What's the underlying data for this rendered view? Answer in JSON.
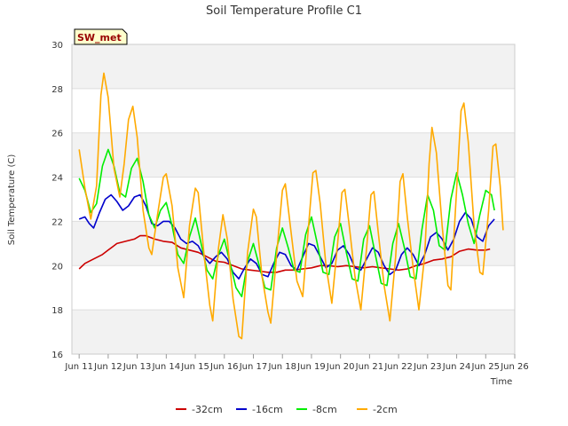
{
  "chart_data": {
    "type": "line",
    "title": "Soil Temperature Profile C1",
    "xlabel": "Time",
    "ylabel": "Soil Temperature (C)",
    "badge": "SW_met",
    "x_tick_labels": [
      "Jun 11",
      "Jun 12",
      "Jun 13",
      "Jun 14",
      "Jun 15",
      "Jun 16",
      "Jun 17",
      "Jun 18",
      "Jun 19",
      "Jun 20",
      "Jun 21",
      "Jun 22",
      "Jun 23",
      "Jun 24",
      "Jun 25",
      "Jun 26"
    ],
    "x_tick_values": [
      11,
      12,
      13,
      14,
      15,
      16,
      17,
      18,
      19,
      20,
      21,
      22,
      23,
      24,
      25,
      26
    ],
    "xlim": [
      10.75,
      26
    ],
    "ylim": [
      16,
      30
    ],
    "y_ticks": [
      16,
      18,
      20,
      22,
      24,
      26,
      28,
      30
    ],
    "grid_bands": true,
    "legend_position": "bottom",
    "series": [
      {
        "name": "-32cm",
        "color": "#cc0000",
        "points": [
          [
            11.0,
            19.85
          ],
          [
            11.2,
            20.1
          ],
          [
            11.5,
            20.3
          ],
          [
            11.8,
            20.5
          ],
          [
            12.0,
            20.7
          ],
          [
            12.3,
            21.0
          ],
          [
            12.6,
            21.1
          ],
          [
            12.9,
            21.2
          ],
          [
            13.1,
            21.35
          ],
          [
            13.3,
            21.35
          ],
          [
            13.6,
            21.2
          ],
          [
            13.9,
            21.1
          ],
          [
            14.2,
            21.05
          ],
          [
            14.5,
            20.8
          ],
          [
            14.8,
            20.7
          ],
          [
            15.1,
            20.6
          ],
          [
            15.4,
            20.4
          ],
          [
            15.7,
            20.2
          ],
          [
            16.0,
            20.15
          ],
          [
            16.3,
            20.0
          ],
          [
            16.6,
            19.85
          ],
          [
            16.9,
            19.8
          ],
          [
            17.2,
            19.75
          ],
          [
            17.5,
            19.7
          ],
          [
            17.8,
            19.7
          ],
          [
            18.1,
            19.8
          ],
          [
            18.4,
            19.8
          ],
          [
            18.7,
            19.85
          ],
          [
            19.0,
            19.9
          ],
          [
            19.3,
            20.0
          ],
          [
            19.6,
            20.0
          ],
          [
            19.9,
            19.95
          ],
          [
            20.2,
            20.0
          ],
          [
            20.5,
            19.95
          ],
          [
            20.8,
            19.9
          ],
          [
            21.1,
            19.95
          ],
          [
            21.4,
            19.9
          ],
          [
            21.7,
            19.85
          ],
          [
            22.0,
            19.8
          ],
          [
            22.3,
            19.85
          ],
          [
            22.6,
            20.0
          ],
          [
            22.9,
            20.1
          ],
          [
            23.2,
            20.25
          ],
          [
            23.5,
            20.3
          ],
          [
            23.8,
            20.4
          ],
          [
            24.1,
            20.65
          ],
          [
            24.4,
            20.75
          ],
          [
            24.7,
            20.7
          ],
          [
            25.0,
            20.7
          ],
          [
            25.15,
            20.75
          ]
        ]
      },
      {
        "name": "-16cm",
        "color": "#0000cc",
        "points": [
          [
            11.0,
            22.1
          ],
          [
            11.2,
            22.2
          ],
          [
            11.35,
            21.9
          ],
          [
            11.5,
            21.7
          ],
          [
            11.7,
            22.4
          ],
          [
            11.9,
            23.0
          ],
          [
            12.1,
            23.2
          ],
          [
            12.3,
            22.9
          ],
          [
            12.5,
            22.5
          ],
          [
            12.7,
            22.7
          ],
          [
            12.9,
            23.1
          ],
          [
            13.1,
            23.2
          ],
          [
            13.3,
            22.7
          ],
          [
            13.5,
            21.9
          ],
          [
            13.7,
            21.8
          ],
          [
            13.9,
            22.0
          ],
          [
            14.1,
            22.0
          ],
          [
            14.3,
            21.7
          ],
          [
            14.5,
            21.2
          ],
          [
            14.7,
            21.0
          ],
          [
            14.9,
            21.1
          ],
          [
            15.1,
            20.9
          ],
          [
            15.3,
            20.4
          ],
          [
            15.5,
            20.1
          ],
          [
            15.7,
            20.4
          ],
          [
            15.9,
            20.6
          ],
          [
            16.1,
            20.3
          ],
          [
            16.3,
            19.7
          ],
          [
            16.5,
            19.4
          ],
          [
            16.7,
            19.9
          ],
          [
            16.9,
            20.3
          ],
          [
            17.1,
            20.1
          ],
          [
            17.3,
            19.6
          ],
          [
            17.5,
            19.5
          ],
          [
            17.7,
            20.1
          ],
          [
            17.9,
            20.6
          ],
          [
            18.1,
            20.5
          ],
          [
            18.3,
            20.0
          ],
          [
            18.5,
            19.8
          ],
          [
            18.7,
            20.4
          ],
          [
            18.9,
            21.0
          ],
          [
            19.1,
            20.9
          ],
          [
            19.3,
            20.4
          ],
          [
            19.5,
            19.9
          ],
          [
            19.7,
            20.1
          ],
          [
            19.9,
            20.7
          ],
          [
            20.1,
            20.9
          ],
          [
            20.3,
            20.5
          ],
          [
            20.5,
            19.9
          ],
          [
            20.7,
            19.8
          ],
          [
            20.9,
            20.3
          ],
          [
            21.1,
            20.8
          ],
          [
            21.3,
            20.6
          ],
          [
            21.5,
            20.0
          ],
          [
            21.7,
            19.6
          ],
          [
            21.9,
            19.8
          ],
          [
            22.1,
            20.5
          ],
          [
            22.3,
            20.8
          ],
          [
            22.5,
            20.5
          ],
          [
            22.7,
            20.0
          ],
          [
            22.9,
            20.5
          ],
          [
            23.1,
            21.3
          ],
          [
            23.3,
            21.5
          ],
          [
            23.5,
            21.2
          ],
          [
            23.7,
            20.7
          ],
          [
            23.9,
            21.2
          ],
          [
            24.1,
            22.0
          ],
          [
            24.3,
            22.4
          ],
          [
            24.5,
            22.1
          ],
          [
            24.7,
            21.3
          ],
          [
            24.9,
            21.1
          ],
          [
            25.1,
            21.8
          ],
          [
            25.3,
            22.1
          ]
        ]
      },
      {
        "name": "-8cm",
        "color": "#00ee00",
        "points": [
          [
            11.0,
            23.95
          ],
          [
            11.2,
            23.4
          ],
          [
            11.4,
            22.4
          ],
          [
            11.6,
            22.8
          ],
          [
            11.8,
            24.5
          ],
          [
            12.0,
            25.25
          ],
          [
            12.2,
            24.5
          ],
          [
            12.4,
            23.3
          ],
          [
            12.6,
            23.1
          ],
          [
            12.8,
            24.4
          ],
          [
            13.0,
            24.85
          ],
          [
            13.2,
            23.8
          ],
          [
            13.4,
            22.3
          ],
          [
            13.6,
            21.7
          ],
          [
            13.8,
            22.5
          ],
          [
            14.0,
            22.85
          ],
          [
            14.2,
            21.8
          ],
          [
            14.4,
            20.5
          ],
          [
            14.6,
            20.1
          ],
          [
            14.8,
            21.3
          ],
          [
            15.0,
            22.15
          ],
          [
            15.2,
            21.0
          ],
          [
            15.4,
            19.8
          ],
          [
            15.6,
            19.4
          ],
          [
            15.8,
            20.5
          ],
          [
            16.0,
            21.2
          ],
          [
            16.2,
            20.1
          ],
          [
            16.4,
            19.0
          ],
          [
            16.6,
            18.6
          ],
          [
            16.8,
            20.2
          ],
          [
            17.0,
            21.0
          ],
          [
            17.2,
            20.0
          ],
          [
            17.4,
            19.0
          ],
          [
            17.6,
            18.9
          ],
          [
            17.8,
            20.8
          ],
          [
            18.0,
            21.7
          ],
          [
            18.2,
            20.8
          ],
          [
            18.4,
            19.8
          ],
          [
            18.6,
            19.7
          ],
          [
            18.8,
            21.4
          ],
          [
            19.0,
            22.2
          ],
          [
            19.2,
            21.0
          ],
          [
            19.4,
            19.7
          ],
          [
            19.6,
            19.6
          ],
          [
            19.8,
            21.3
          ],
          [
            20.0,
            21.9
          ],
          [
            20.2,
            20.6
          ],
          [
            20.4,
            19.4
          ],
          [
            20.6,
            19.3
          ],
          [
            20.8,
            21.2
          ],
          [
            21.0,
            21.8
          ],
          [
            21.2,
            20.5
          ],
          [
            21.4,
            19.2
          ],
          [
            21.6,
            19.1
          ],
          [
            21.8,
            21.0
          ],
          [
            22.0,
            21.9
          ],
          [
            22.2,
            20.8
          ],
          [
            22.4,
            19.5
          ],
          [
            22.6,
            19.4
          ],
          [
            22.8,
            21.6
          ],
          [
            23.0,
            23.2
          ],
          [
            23.2,
            22.5
          ],
          [
            23.4,
            20.9
          ],
          [
            23.6,
            20.7
          ],
          [
            23.8,
            23.0
          ],
          [
            24.0,
            24.2
          ],
          [
            24.2,
            23.2
          ],
          [
            24.4,
            21.9
          ],
          [
            24.6,
            21.0
          ],
          [
            24.8,
            22.3
          ],
          [
            25.0,
            23.4
          ],
          [
            25.2,
            23.2
          ],
          [
            25.3,
            22.5
          ]
        ]
      },
      {
        "name": "-2cm",
        "color": "#ffaa00",
        "points": [
          [
            11.0,
            25.25
          ],
          [
            11.2,
            23.5
          ],
          [
            11.4,
            22.1
          ],
          [
            11.6,
            23.6
          ],
          [
            11.75,
            27.7
          ],
          [
            11.85,
            28.7
          ],
          [
            12.0,
            27.6
          ],
          [
            12.2,
            24.4
          ],
          [
            12.4,
            23.1
          ],
          [
            12.55,
            24.6
          ],
          [
            12.7,
            26.6
          ],
          [
            12.85,
            27.2
          ],
          [
            13.0,
            25.8
          ],
          [
            13.2,
            22.5
          ],
          [
            13.4,
            20.8
          ],
          [
            13.5,
            20.5
          ],
          [
            13.7,
            22.3
          ],
          [
            13.9,
            24.0
          ],
          [
            14.0,
            24.15
          ],
          [
            14.2,
            22.7
          ],
          [
            14.4,
            19.9
          ],
          [
            14.6,
            18.55
          ],
          [
            14.8,
            21.8
          ],
          [
            15.0,
            23.5
          ],
          [
            15.1,
            23.3
          ],
          [
            15.3,
            20.5
          ],
          [
            15.5,
            18.2
          ],
          [
            15.6,
            17.5
          ],
          [
            15.8,
            20.8
          ],
          [
            15.95,
            22.3
          ],
          [
            16.1,
            21.2
          ],
          [
            16.3,
            18.5
          ],
          [
            16.5,
            16.8
          ],
          [
            16.6,
            16.7
          ],
          [
            16.8,
            20.6
          ],
          [
            17.0,
            22.55
          ],
          [
            17.1,
            22.2
          ],
          [
            17.3,
            19.5
          ],
          [
            17.5,
            17.9
          ],
          [
            17.6,
            17.4
          ],
          [
            17.8,
            20.5
          ],
          [
            18.0,
            23.4
          ],
          [
            18.1,
            23.7
          ],
          [
            18.3,
            21.5
          ],
          [
            18.5,
            19.3
          ],
          [
            18.7,
            18.6
          ],
          [
            18.9,
            21.8
          ],
          [
            19.05,
            24.2
          ],
          [
            19.15,
            24.3
          ],
          [
            19.3,
            22.8
          ],
          [
            19.5,
            20.0
          ],
          [
            19.7,
            18.3
          ],
          [
            19.9,
            21.0
          ],
          [
            20.05,
            23.3
          ],
          [
            20.15,
            23.45
          ],
          [
            20.3,
            21.8
          ],
          [
            20.5,
            19.5
          ],
          [
            20.7,
            18.0
          ],
          [
            20.9,
            20.8
          ],
          [
            21.05,
            23.2
          ],
          [
            21.15,
            23.35
          ],
          [
            21.3,
            21.5
          ],
          [
            21.5,
            19.1
          ],
          [
            21.7,
            17.5
          ],
          [
            21.9,
            20.4
          ],
          [
            22.05,
            23.8
          ],
          [
            22.15,
            24.15
          ],
          [
            22.3,
            22.2
          ],
          [
            22.5,
            19.9
          ],
          [
            22.7,
            18.0
          ],
          [
            22.9,
            20.5
          ],
          [
            23.05,
            24.6
          ],
          [
            23.15,
            26.25
          ],
          [
            23.3,
            25.1
          ],
          [
            23.5,
            21.8
          ],
          [
            23.7,
            19.1
          ],
          [
            23.8,
            18.9
          ],
          [
            24.0,
            23.5
          ],
          [
            24.15,
            27.0
          ],
          [
            24.25,
            27.35
          ],
          [
            24.4,
            25.6
          ],
          [
            24.6,
            21.8
          ],
          [
            24.8,
            19.7
          ],
          [
            24.9,
            19.6
          ],
          [
            25.1,
            22.5
          ],
          [
            25.25,
            25.4
          ],
          [
            25.35,
            25.5
          ],
          [
            25.5,
            23.6
          ],
          [
            25.6,
            21.6
          ]
        ]
      }
    ]
  }
}
